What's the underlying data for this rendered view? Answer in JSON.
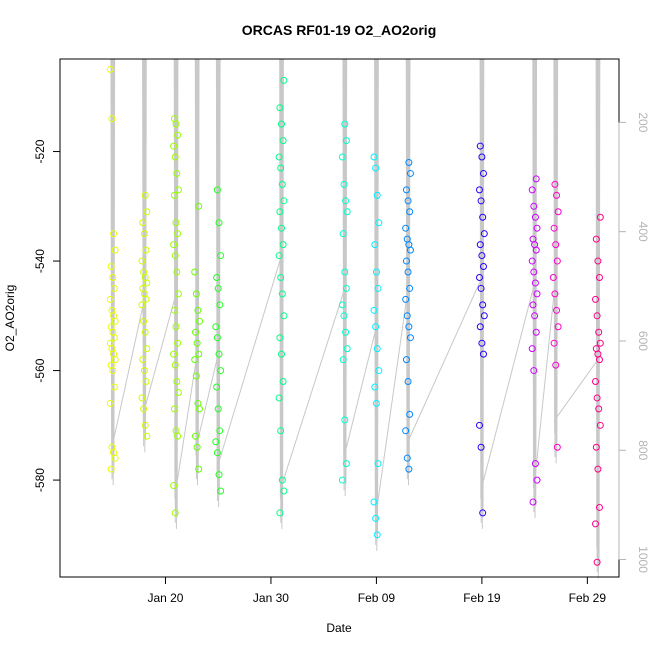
{
  "chart_data": {
    "type": "scatter",
    "title": "ORCAS RF01-19 O2_AO2orig",
    "xlabel": "Date",
    "ylabel": "O2_AO2orig",
    "x_tick_labels": [
      "Jan 20",
      "Jan 30",
      "Feb 09",
      "Feb 19",
      "Feb 29"
    ],
    "x_tick_values": [
      "2016-01-20",
      "2016-01-30",
      "2016-02-09",
      "2016-02-19",
      "2016-02-29"
    ],
    "xlim": [
      "2016-01-10",
      "2016-03-03"
    ],
    "y_tick_labels": [
      "-520",
      "-540",
      "-560",
      "-580"
    ],
    "y_tick_values": [
      -520,
      -540,
      -560,
      -580
    ],
    "ylim": [
      -597.7,
      -503.1
    ],
    "y2_tick_labels": [
      "200",
      "400",
      "600",
      "800",
      "1000"
    ],
    "y2_tick_values": [
      200,
      400,
      600,
      800,
      1000
    ],
    "y2lim": [
      1032,
      84
    ],
    "grid": false,
    "legend": "none",
    "colors": {
      "series_palette": [
        "#ffff00",
        "#d9ff00",
        "#99ff00",
        "#55ff00",
        "#11ff22",
        "#00ff99",
        "#00ffe6",
        "#00ccff",
        "#0066ff",
        "#1100ff",
        "#aa00ff",
        "#ff00cc",
        "#ff0088"
      ],
      "trace": "#c8c8c8",
      "right_axis": "#b4b4b4"
    },
    "series": [
      {
        "date": "2016-01-15",
        "color": "#e8ff00",
        "values": [
          -505,
          -514,
          -535,
          -538,
          -541,
          -543,
          -545,
          -547,
          -549,
          -550,
          -551,
          -552,
          -553,
          -554,
          -555,
          -556,
          -557,
          -558,
          -559,
          -560,
          -563,
          -566,
          -574,
          -575,
          -576,
          -578
        ]
      },
      {
        "date": "2016-01-18",
        "color": "#ccff00",
        "values": [
          -528,
          -531,
          -533,
          -535,
          -538,
          -540,
          -542,
          -543,
          -544,
          -545,
          -546,
          -547,
          -548,
          -551,
          -553,
          -556,
          -558,
          -560,
          -562,
          -565,
          -567,
          -570,
          -572
        ]
      },
      {
        "date": "2016-01-21",
        "color": "#99ff00",
        "values": [
          -514,
          -515,
          -517,
          -519,
          -521,
          -524,
          -527,
          -528,
          -533,
          -535,
          -537,
          -539,
          -542,
          -546,
          -549,
          -552,
          -555,
          -557,
          -559,
          -562,
          -564,
          -567,
          -571,
          -572,
          -581,
          -586
        ]
      },
      {
        "date": "2016-01-23",
        "color": "#66ff00",
        "values": [
          -530,
          -542,
          -546,
          -549,
          -551,
          -553,
          -555,
          -557,
          -558,
          -561,
          -566,
          -567,
          -572,
          -574,
          -578
        ]
      },
      {
        "date": "2016-01-25",
        "color": "#22ff22",
        "values": [
          -527,
          -533,
          -539,
          -543,
          -545,
          -548,
          -552,
          -554,
          -557,
          -560,
          -563,
          -567,
          -571,
          -573,
          -575,
          -579,
          -582
        ]
      },
      {
        "date": "2016-01-31",
        "color": "#00ff88",
        "values": [
          -507,
          -512,
          -515,
          -518,
          -521,
          -523,
          -526,
          -529,
          -531,
          -534,
          -537,
          -539,
          -543,
          -546,
          -550,
          -554,
          -557,
          -562,
          -565,
          -571,
          -580,
          -582,
          -586
        ]
      },
      {
        "date": "2016-02-06",
        "color": "#00ffcc",
        "values": [
          -515,
          -518,
          -521,
          -526,
          -529,
          -531,
          -535,
          -542,
          -545,
          -548,
          -550,
          -553,
          -556,
          -558,
          -569,
          -577,
          -580
        ]
      },
      {
        "date": "2016-02-09",
        "color": "#00f0ff",
        "values": [
          -521,
          -523,
          -528,
          -533,
          -537,
          -542,
          -545,
          -549,
          -552,
          -556,
          -560,
          -563,
          -566,
          -577,
          -584,
          -587,
          -590
        ]
      },
      {
        "date": "2016-02-12",
        "color": "#0088ff",
        "values": [
          -522,
          -524,
          -527,
          -529,
          -531,
          -534,
          -536,
          -537,
          -538,
          -540,
          -542,
          -545,
          -547,
          -550,
          -552,
          -554,
          -558,
          -562,
          -568,
          -571,
          -576,
          -578
        ]
      },
      {
        "date": "2016-02-19",
        "color": "#2200ff",
        "values": [
          -519,
          -521,
          -524,
          -527,
          -529,
          -532,
          -535,
          -537,
          -539,
          -541,
          -543,
          -545,
          -548,
          -550,
          -552,
          -555,
          -557,
          -570,
          -574,
          -586
        ]
      },
      {
        "date": "2016-02-24",
        "color": "#cc00ff",
        "values": [
          -525,
          -527,
          -530,
          -532,
          -534,
          -536,
          -537,
          -538,
          -540,
          -542,
          -544,
          -546,
          -548,
          -550,
          -553,
          -556,
          -560,
          -577,
          -580,
          -584
        ]
      },
      {
        "date": "2016-02-26",
        "color": "#ff00cc",
        "values": [
          -526,
          -528,
          -531,
          -534,
          -537,
          -540,
          -543,
          -546,
          -549,
          -552,
          -555,
          -559,
          -574
        ]
      },
      {
        "date": "2016-03-01",
        "color": "#ff0088",
        "values": [
          -532,
          -536,
          -540,
          -543,
          -547,
          -550,
          -553,
          -555,
          -556,
          -557,
          -558,
          -562,
          -565,
          -567,
          -570,
          -574,
          -578,
          -585,
          -588,
          -595
        ]
      }
    ]
  }
}
